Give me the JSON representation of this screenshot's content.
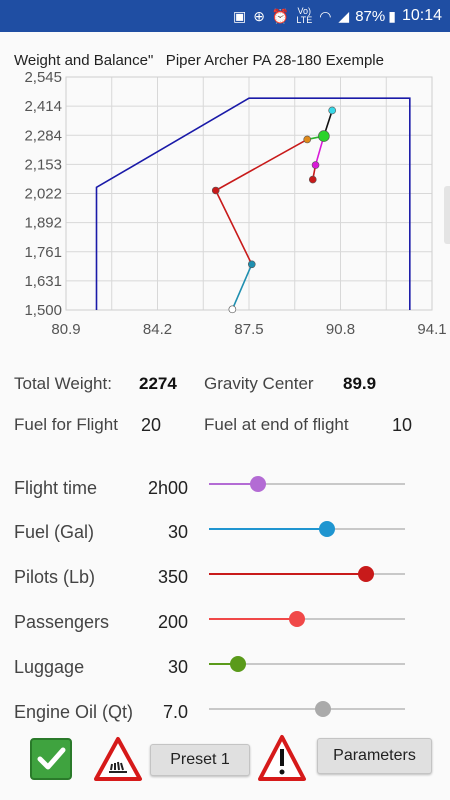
{
  "status_bar": {
    "battery": "87%",
    "time": "10:14",
    "network": "LTE",
    "icons": [
      "sim-icon",
      "add-icon",
      "alarm-icon",
      "volte-icon",
      "wifi-icon",
      "signal-icon",
      "battery-icon"
    ]
  },
  "chart_title": "Weight and Balance\"   Piper Archer PA 28-180 Exemple",
  "chart_data": {
    "type": "line",
    "xlim": [
      80.9,
      94.1
    ],
    "ylim": [
      1500,
      2545
    ],
    "x_ticks": [
      "80.9",
      "84.2",
      "87.5",
      "90.8",
      "94.1"
    ],
    "y_ticks": [
      "1,500",
      "1,631",
      "1,761",
      "1,892",
      "2,022",
      "2,153",
      "2,284",
      "2,414",
      "2,545"
    ],
    "grid": true,
    "envelope": {
      "color": "#1a1aa8",
      "points": [
        [
          82.0,
          1500
        ],
        [
          82.0,
          2050
        ],
        [
          87.5,
          2450
        ],
        [
          93.3,
          2450
        ],
        [
          93.3,
          1500
        ]
      ]
    },
    "series": [
      {
        "color": "#1f8fb0",
        "points": [
          [
            86.9,
            1503
          ],
          [
            87.6,
            1705
          ]
        ]
      },
      {
        "color": "#c81a1a",
        "points": [
          [
            87.6,
            1705
          ],
          [
            86.3,
            2036
          ]
        ]
      },
      {
        "color": "#c81a1a",
        "points": [
          [
            86.3,
            2036
          ],
          [
            89.6,
            2265
          ]
        ]
      },
      {
        "color": "#2bb52b",
        "points": [
          [
            89.6,
            2265
          ],
          [
            90.2,
            2280
          ]
        ]
      },
      {
        "color": "#e0e020",
        "points": [
          [
            90.2,
            2280
          ],
          [
            90.2,
            2280
          ]
        ]
      },
      {
        "color": "#111111",
        "points": [
          [
            90.2,
            2280
          ],
          [
            90.5,
            2395
          ]
        ]
      },
      {
        "color": "#d81ad8",
        "points": [
          [
            90.2,
            2280
          ],
          [
            89.9,
            2150
          ]
        ]
      },
      {
        "color": "#c81a1a",
        "points": [
          [
            89.9,
            2150
          ],
          [
            89.8,
            2085
          ]
        ]
      }
    ],
    "markers": [
      {
        "x": 86.9,
        "y": 1503,
        "color": "#ffffff"
      },
      {
        "x": 87.6,
        "y": 1705,
        "color": "#1f8fb0"
      },
      {
        "x": 86.3,
        "y": 2036,
        "color": "#c81a1a"
      },
      {
        "x": 89.6,
        "y": 2265,
        "color": "#e08a1a"
      },
      {
        "x": 90.2,
        "y": 2280,
        "color": "#2bd32b",
        "size": "large"
      },
      {
        "x": 90.5,
        "y": 2395,
        "color": "#38d8e8"
      },
      {
        "x": 89.9,
        "y": 2150,
        "color": "#d81ad8"
      },
      {
        "x": 89.8,
        "y": 2085,
        "color": "#c81a1a"
      }
    ]
  },
  "summary": {
    "total_weight_label": "Total Weight:",
    "total_weight": "2274",
    "gravity_center_label": "Gravity Center",
    "gravity_center": "89.9",
    "fuel_for_flight_label": "Fuel for Flight",
    "fuel_for_flight": "20",
    "fuel_end_label": "Fuel at end of flight",
    "fuel_end": "10"
  },
  "sliders": [
    {
      "label": "Flight time",
      "value": "2h00",
      "level": 0.25,
      "color": "#b36bd4"
    },
    {
      "label": "Fuel (Gal)",
      "value": "30",
      "level": 0.6,
      "color": "#1f95d0"
    },
    {
      "label": "Pilots (Lb)",
      "value": "350",
      "level": 0.8,
      "color": "#c81a1a"
    },
    {
      "label": "Passengers",
      "value": "200",
      "level": 0.45,
      "color": "#f04848"
    },
    {
      "label": "Luggage",
      "value": "30",
      "level": 0.15,
      "color": "#5a9a1a"
    },
    {
      "label": "Engine Oil (Qt)",
      "value": "7.0",
      "level": 0.58,
      "color": "#aaaaaa",
      "fill_color": "#c8c8c8"
    }
  ],
  "buttons": {
    "preset_label": "Preset 1",
    "parameters_label": "Parameters"
  }
}
